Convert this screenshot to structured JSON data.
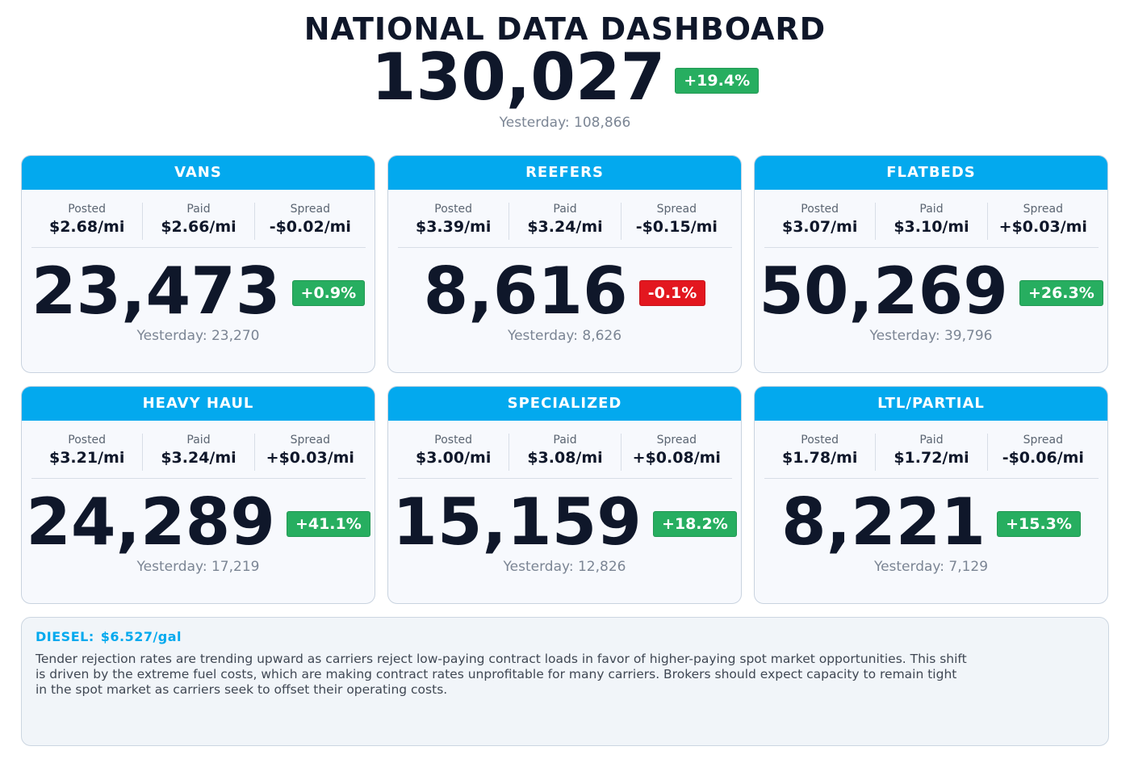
{
  "dashboard": {
    "title": "NATIONAL DATA DASHBOARD",
    "total": "130,027",
    "change": "+19.4%",
    "change_direction": "up",
    "yesterday": "Yesterday: 108,866"
  },
  "labels": {
    "posted": "Posted",
    "paid": "Paid",
    "spread": "Spread"
  },
  "colors": {
    "accent": "#03a9ee",
    "up": "#27ae60",
    "down": "#e3171f",
    "text": "#0f172a"
  },
  "cards": [
    {
      "title": "VANS",
      "posted": "$2.68/mi",
      "paid": "$2.66/mi",
      "spread": "-$0.02/mi",
      "count": "23,473",
      "change": "+0.9%",
      "direction": "up",
      "yesterday": "Yesterday: 23,270"
    },
    {
      "title": "REEFERS",
      "posted": "$3.39/mi",
      "paid": "$3.24/mi",
      "spread": "-$0.15/mi",
      "count": "8,616",
      "change": "-0.1%",
      "direction": "down",
      "yesterday": "Yesterday: 8,626"
    },
    {
      "title": "FLATBEDS",
      "posted": "$3.07/mi",
      "paid": "$3.10/mi",
      "spread": "+$0.03/mi",
      "count": "50,269",
      "change": "+26.3%",
      "direction": "up",
      "yesterday": "Yesterday: 39,796"
    },
    {
      "title": "HEAVY HAUL",
      "posted": "$3.21/mi",
      "paid": "$3.24/mi",
      "spread": "+$0.03/mi",
      "count": "24,289",
      "change": "+41.1%",
      "direction": "up",
      "yesterday": "Yesterday: 17,219"
    },
    {
      "title": "SPECIALIZED",
      "posted": "$3.00/mi",
      "paid": "$3.08/mi",
      "spread": "+$0.08/mi",
      "count": "15,159",
      "change": "+18.2%",
      "direction": "up",
      "yesterday": "Yesterday: 12,826"
    },
    {
      "title": "LTL/PARTIAL",
      "posted": "$1.78/mi",
      "paid": "$1.72/mi",
      "spread": "-$0.06/mi",
      "count": "8,221",
      "change": "+15.3%",
      "direction": "up",
      "yesterday": "Yesterday: 7,129"
    }
  ],
  "note": {
    "diesel_label": "DIESEL:",
    "diesel_value": "$6.527/gal",
    "text": "Tender rejection rates are trending upward as carriers reject low-paying contract loads in favor of higher-paying spot market opportunities. This shift is driven by the extreme fuel costs, which are making contract rates unprofitable for many carriers. Brokers should expect capacity to remain tight in the spot market as carriers seek to offset their operating costs."
  }
}
